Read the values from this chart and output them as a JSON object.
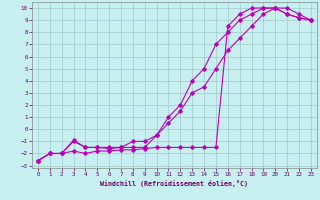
{
  "title": "",
  "xlabel": "Windchill (Refroidissement éolien,°C)",
  "ylabel": "",
  "xlim": [
    -0.5,
    23.5
  ],
  "ylim": [
    -3.2,
    10.5
  ],
  "xticks": [
    0,
    1,
    2,
    3,
    4,
    5,
    6,
    7,
    8,
    9,
    10,
    11,
    12,
    13,
    14,
    15,
    16,
    17,
    18,
    19,
    20,
    21,
    22,
    23
  ],
  "yticks": [
    -3,
    -2,
    -1,
    0,
    1,
    2,
    3,
    4,
    5,
    6,
    7,
    8,
    9,
    10
  ],
  "bg_color": "#c8eff0",
  "line_color": "#bb00bb",
  "grid_color": "#a0c8cc",
  "line1_x": [
    0,
    1,
    2,
    3,
    4,
    5,
    6,
    7,
    8,
    9,
    10,
    11,
    12,
    13,
    14,
    15,
    16,
    17,
    18,
    19,
    20,
    21,
    22,
    23
  ],
  "line1_y": [
    -2.6,
    -2.0,
    -2.0,
    -0.9,
    -1.5,
    -1.5,
    -1.6,
    -1.5,
    -1.5,
    -1.5,
    -0.5,
    0.5,
    1.5,
    3.0,
    3.5,
    5.0,
    6.5,
    7.5,
    8.5,
    9.5,
    10.0,
    10.0,
    9.5,
    9.0
  ],
  "line2_x": [
    0,
    1,
    2,
    3,
    4,
    5,
    6,
    7,
    8,
    9,
    10,
    11,
    12,
    13,
    14,
    15,
    16,
    17,
    18,
    19,
    20,
    21,
    22,
    23
  ],
  "line2_y": [
    -2.6,
    -2.0,
    -2.0,
    -1.8,
    -2.0,
    -1.8,
    -1.8,
    -1.7,
    -1.7,
    -1.6,
    -1.5,
    -1.5,
    -1.5,
    -1.5,
    -1.5,
    -1.5,
    8.5,
    9.5,
    10.0,
    10.0,
    10.0,
    9.5,
    9.2,
    9.0
  ],
  "line3_x": [
    0,
    1,
    2,
    3,
    4,
    5,
    6,
    7,
    8,
    9,
    10,
    11,
    12,
    13,
    14,
    15,
    16,
    17,
    18,
    19,
    20,
    21,
    22,
    23
  ],
  "line3_y": [
    -2.6,
    -2.0,
    -2.0,
    -1.0,
    -1.5,
    -1.5,
    -1.5,
    -1.5,
    -1.0,
    -1.0,
    -0.5,
    1.0,
    2.0,
    4.0,
    5.0,
    7.0,
    8.0,
    9.0,
    9.5,
    10.0,
    10.0,
    9.5,
    9.2,
    9.0
  ]
}
